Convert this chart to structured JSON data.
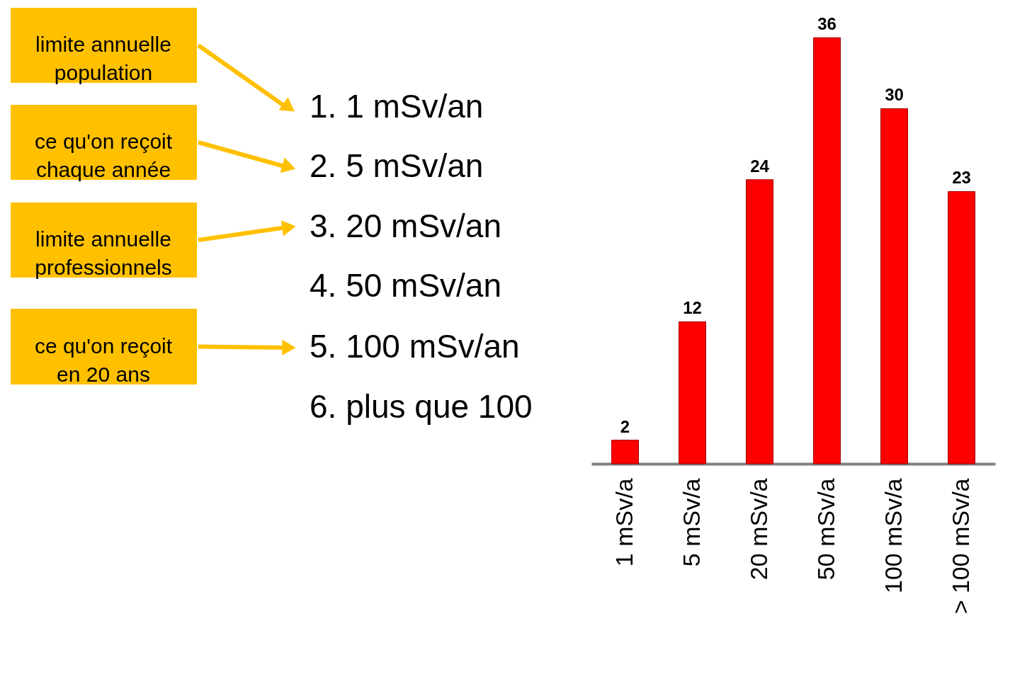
{
  "chart_data": {
    "type": "bar",
    "categories": [
      "1 mSv/a",
      "5 mSv/a",
      "20 mSv/a",
      "50 mSv/a",
      "100 mSv/a",
      "> 100 mSv/a"
    ],
    "values": [
      2,
      12,
      24,
      36,
      30,
      23
    ],
    "color": "#ff0000",
    "data_labels": true,
    "annotations": [
      "limite annuelle\npopulation",
      "ce qu'on reçoit\nchaque année",
      "limite annuelle\nprofessionnels",
      "ce qu'on reçoit\nen 20 ans",
      "1.   1 mSv/an",
      "2.   5 mSv/an",
      "3.   20 mSv/an",
      "4.   50 mSv/an",
      "5.   100 mSv/an",
      "6.   plus que 100"
    ]
  }
}
